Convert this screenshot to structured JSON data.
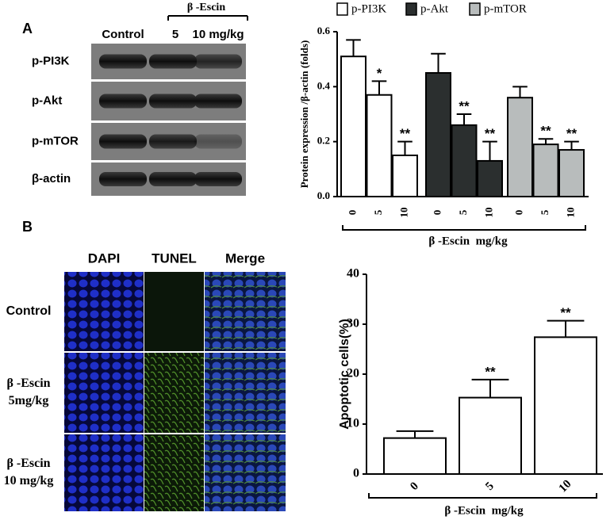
{
  "panels": {
    "a": "A",
    "b": "B"
  },
  "blot": {
    "group_label": "β -Escin",
    "columns": [
      "Control",
      "5",
      "10 mg/kg"
    ],
    "rows": [
      "p-PI3K",
      "p-Akt",
      "p-mTOR",
      "β-actin"
    ]
  },
  "microscopy": {
    "columns": [
      "DAPI",
      "TUNEL",
      "Merge"
    ],
    "rows": [
      [
        "Control"
      ],
      [
        "β -Escin",
        "5mg/kg"
      ],
      [
        "β -Escin",
        "10 mg/kg"
      ]
    ]
  },
  "chart_data": [
    {
      "type": "bar",
      "y_label": "Protein expression /β-actin (folds)",
      "x_label": "β -Escin  mg/kg",
      "categories": [
        "0",
        "5",
        "10"
      ],
      "series": [
        {
          "name": "p-PI3K",
          "color": "#ffffff",
          "values": [
            0.51,
            0.37,
            0.15
          ],
          "errors": [
            0.06,
            0.05,
            0.05
          ],
          "annotations": [
            null,
            "*",
            "**"
          ]
        },
        {
          "name": "p-Akt",
          "color": "#2b2f2f",
          "values": [
            0.45,
            0.26,
            0.13
          ],
          "errors": [
            0.07,
            0.04,
            0.07
          ],
          "annotations": [
            null,
            "**",
            "**"
          ]
        },
        {
          "name": "p-mTOR",
          "color": "#b8bcbc",
          "values": [
            0.36,
            0.19,
            0.17
          ],
          "errors": [
            0.04,
            0.02,
            0.03
          ],
          "annotations": [
            null,
            "**",
            "**"
          ]
        }
      ],
      "ylim": [
        0,
        0.6
      ],
      "yticks": [
        {
          "value": 0,
          "label": "0.0"
        },
        0.2,
        0.4,
        0.6
      ],
      "legend": "top"
    },
    {
      "type": "bar",
      "y_label": "Apoptotic cells(%)",
      "x_label": "β -Escin  mg/kg",
      "categories": [
        "0",
        "5",
        "10"
      ],
      "series": [
        {
          "color": "#ffffff",
          "values": [
            7.2,
            15.3,
            27.4
          ],
          "errors": [
            1.4,
            3.6,
            3.3
          ],
          "annotations": [
            null,
            "**",
            "**"
          ]
        }
      ],
      "ylim": [
        0,
        40
      ],
      "yticks": [
        0,
        10,
        20,
        30,
        40
      ]
    }
  ]
}
